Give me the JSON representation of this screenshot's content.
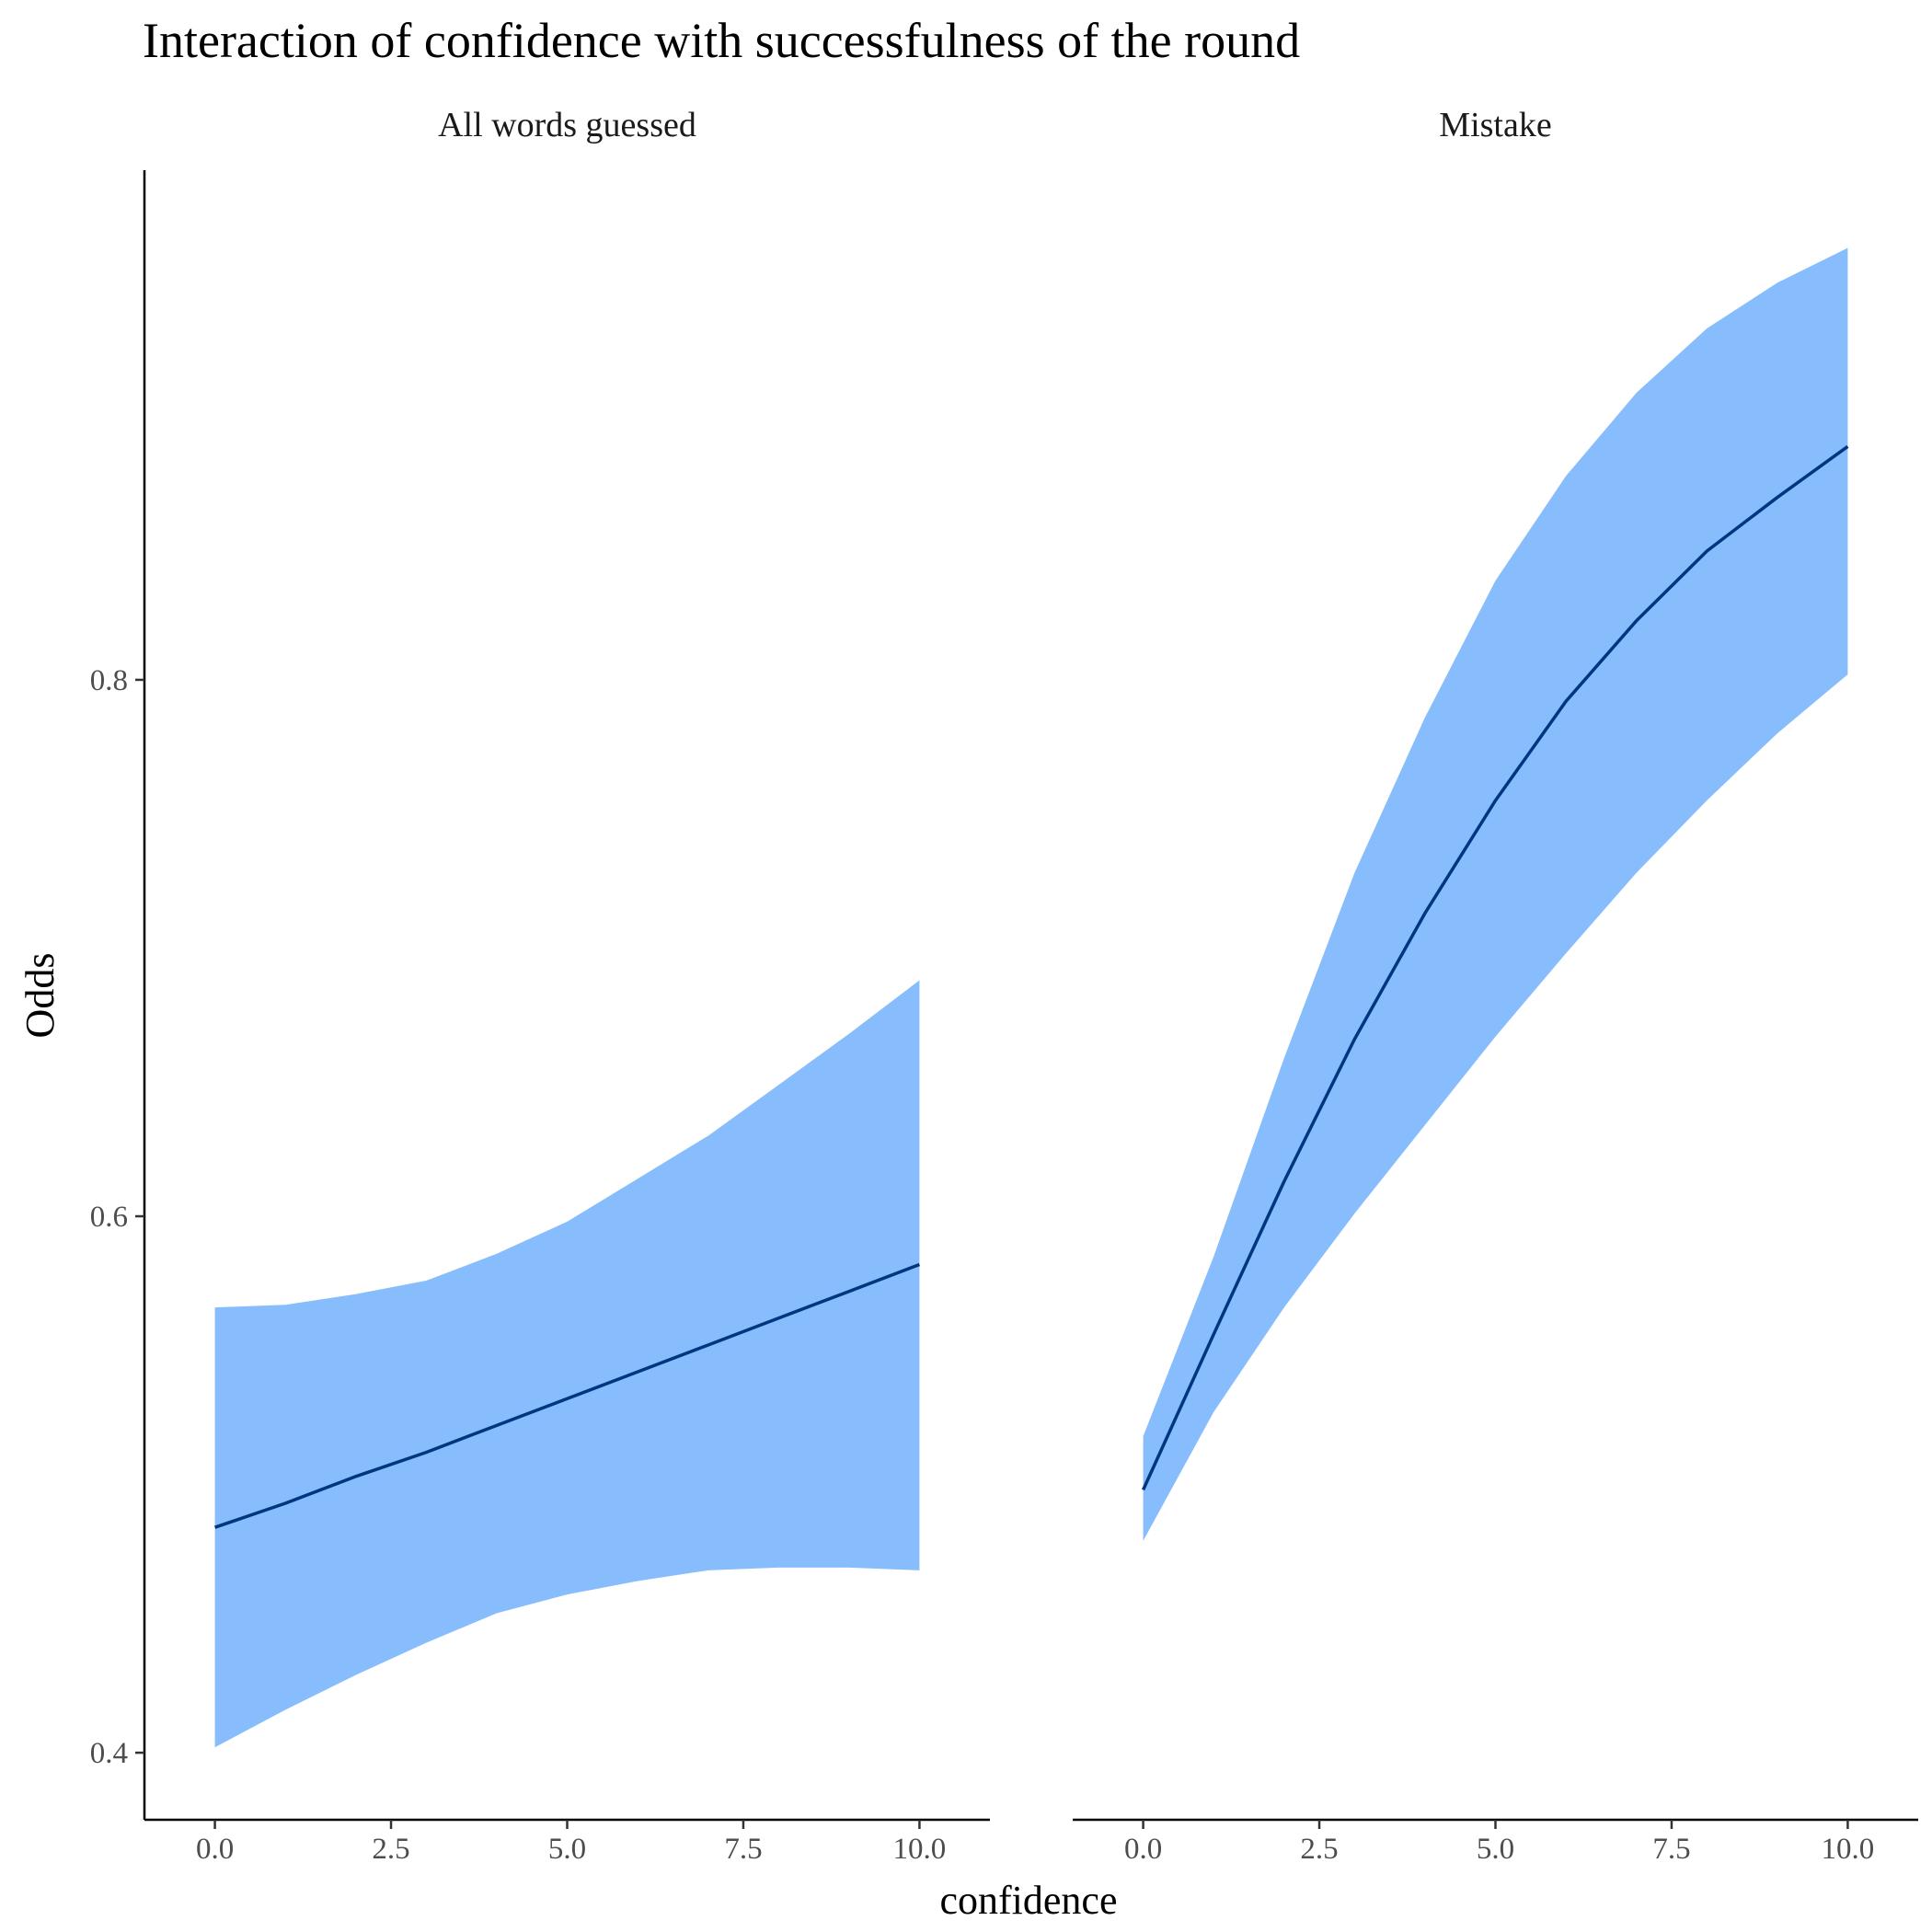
{
  "chart_data": {
    "type": "area",
    "title": "Interaction of confidence with successfulness of the round",
    "xlabel": "confidence",
    "ylabel": "Odds",
    "xlim": [
      -1,
      11
    ],
    "ylim": [
      0.375,
      0.99
    ],
    "x_ticks": [
      "0.0",
      "2.5",
      "5.0",
      "7.5",
      "10.0"
    ],
    "x_tick_values": [
      0,
      2.5,
      5,
      7.5,
      10
    ],
    "y_ticks": [
      "0.4",
      "0.6",
      "0.8"
    ],
    "y_tick_values": [
      0.4,
      0.6,
      0.8
    ],
    "grid": false,
    "legend": "none",
    "band_color": "#87BDFC",
    "line_color": "#003580",
    "panels": [
      {
        "label": "All words guessed",
        "x": [
          0,
          1,
          2,
          3,
          4,
          5,
          6,
          7,
          8,
          9,
          10
        ],
        "fit": [
          0.484,
          0.493,
          0.503,
          0.512,
          0.522,
          0.532,
          0.542,
          0.552,
          0.562,
          0.572,
          0.582
        ],
        "lower": [
          0.402,
          0.416,
          0.429,
          0.441,
          0.452,
          0.459,
          0.464,
          0.468,
          0.469,
          0.469,
          0.468
        ],
        "upper": [
          0.566,
          0.567,
          0.571,
          0.576,
          0.586,
          0.598,
          0.614,
          0.63,
          0.649,
          0.668,
          0.688
        ]
      },
      {
        "label": "Mistake",
        "x": [
          0,
          1,
          2,
          3,
          4,
          5,
          6,
          7,
          8,
          9,
          10
        ],
        "fit": [
          0.498,
          0.556,
          0.613,
          0.666,
          0.713,
          0.755,
          0.792,
          0.822,
          0.848,
          0.868,
          0.887
        ],
        "lower": [
          0.479,
          0.527,
          0.566,
          0.601,
          0.634,
          0.667,
          0.698,
          0.728,
          0.755,
          0.78,
          0.802
        ],
        "upper": [
          0.518,
          0.585,
          0.659,
          0.728,
          0.786,
          0.837,
          0.876,
          0.907,
          0.931,
          0.948,
          0.961
        ]
      }
    ]
  }
}
